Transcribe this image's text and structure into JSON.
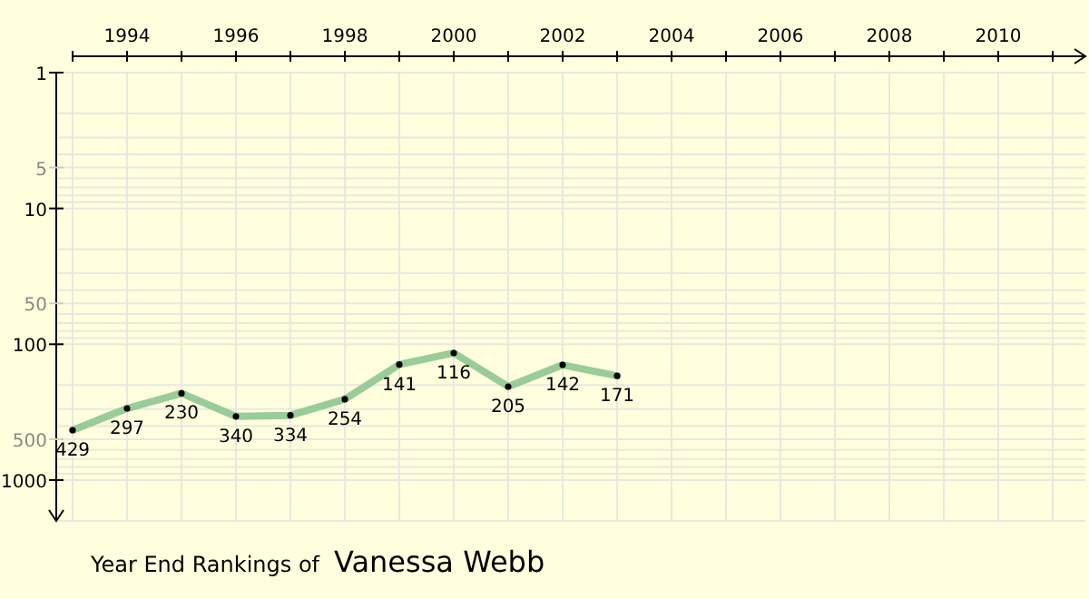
{
  "chart_data": {
    "type": "line",
    "title": "Year End Rankings of",
    "subtitle": "Vanessa Webb",
    "x": [
      1993,
      1994,
      1995,
      1996,
      1997,
      1998,
      1999,
      2000,
      2001,
      2002,
      2003
    ],
    "series": [
      {
        "color": "#99cc99",
        "values": [
          429,
          297,
          230,
          340,
          334,
          254,
          141,
          116,
          205,
          142,
          171
        ]
      }
    ],
    "xlim": [
      1993,
      2011.6
    ],
    "xticks": [
      {
        "value": 1993,
        "label": null
      },
      1994,
      {
        "value": 1995,
        "label": null
      },
      1996,
      {
        "value": 1997,
        "label": null
      },
      1998,
      {
        "value": 1999,
        "label": null
      },
      2000,
      {
        "value": 2001,
        "label": null
      },
      2002,
      {
        "value": 2003,
        "label": null
      },
      2004,
      {
        "value": 2005,
        "label": null
      },
      2006,
      {
        "value": 2007,
        "label": null
      },
      2008,
      {
        "value": 2009,
        "label": null
      },
      2010,
      {
        "value": 2011,
        "label": null
      }
    ],
    "ylim": [
      2000,
      1
    ],
    "yticks": [
      1,
      5,
      10,
      50,
      100,
      500,
      1000
    ],
    "log": "y",
    "grid": true,
    "marker": "circle",
    "data_labels": true
  }
}
